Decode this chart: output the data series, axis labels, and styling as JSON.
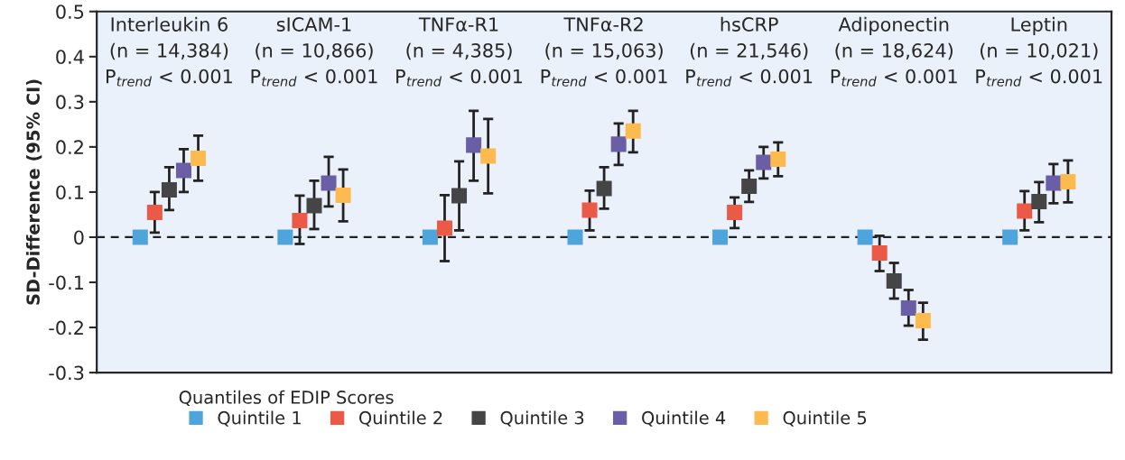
{
  "chart_data": {
    "type": "scatter",
    "categories": [
      "Interleukin 6\n(n = 14,384)\nP$_{trend}$ < 0.001",
      "sICAM-1\n(n = 10,866)\nP$_{trend}$ < 0.001",
      "TNFα-R1\n(n = 4,385)\nP$_{trend}$ < 0.001",
      "TNFα-R2\n(n = 15,063)\nP$_{trend}$ < 0.001",
      "hsCRP\n(n = 21,546)\nP$_{trend}$ < 0.001",
      "Adiponectin\n(n = 18,624)\nP$_{trend}$ < 0.001",
      "Leptin\n(n = 10,021)\nP$_{trend}$ < 0.001"
    ],
    "ylabel": "SD-Difference (95% CI)",
    "legend_title": "Quantiles of EDIP Scores",
    "series": [
      {
        "name": "Quintile 1",
        "color": "#4ea5dc",
        "values": [
          0,
          0,
          0,
          0,
          0,
          0,
          0
        ],
        "errors": [
          null,
          null,
          null,
          null,
          null,
          null,
          null
        ]
      },
      {
        "name": "Quintile 2",
        "color": "#eb5a46",
        "values": [
          0.055,
          0.037,
          0.02,
          0.06,
          0.055,
          -0.035,
          0.058
        ],
        "errors": [
          [
            0.01,
            0.1
          ],
          [
            -0.015,
            0.092
          ],
          [
            -0.053,
            0.093
          ],
          [
            0.015,
            0.103
          ],
          [
            0.02,
            0.088
          ],
          [
            -0.075,
            0.003
          ],
          [
            0.015,
            0.102
          ]
        ]
      },
      {
        "name": "Quintile 3",
        "color": "#454545",
        "values": [
          0.105,
          0.07,
          0.092,
          0.108,
          0.113,
          -0.097,
          0.079
        ],
        "errors": [
          [
            0.06,
            0.155
          ],
          [
            0.018,
            0.125
          ],
          [
            0.015,
            0.168
          ],
          [
            0.063,
            0.155
          ],
          [
            0.078,
            0.148
          ],
          [
            -0.136,
            -0.057
          ],
          [
            0.033,
            0.122
          ]
        ]
      },
      {
        "name": "Quintile 4",
        "color": "#6a5fa6",
        "values": [
          0.148,
          0.12,
          0.204,
          0.206,
          0.166,
          -0.157,
          0.12
        ],
        "errors": [
          [
            0.1,
            0.195
          ],
          [
            0.068,
            0.178
          ],
          [
            0.125,
            0.28
          ],
          [
            0.16,
            0.252
          ],
          [
            0.13,
            0.2
          ],
          [
            -0.196,
            -0.117
          ],
          [
            0.075,
            0.162
          ]
        ]
      },
      {
        "name": "Quintile 5",
        "color": "#fdbb4f",
        "values": [
          0.175,
          0.093,
          0.18,
          0.235,
          0.173,
          -0.185,
          0.123
        ],
        "errors": [
          [
            0.125,
            0.225
          ],
          [
            0.035,
            0.15
          ],
          [
            0.097,
            0.262
          ],
          [
            0.188,
            0.28
          ],
          [
            0.135,
            0.21
          ],
          [
            -0.227,
            -0.145
          ],
          [
            0.077,
            0.17
          ]
        ]
      }
    ],
    "ylim": [
      -0.3,
      0.5
    ],
    "yticks": [
      -0.3,
      -0.2,
      -0.1,
      0,
      0.1,
      0.2,
      0.3,
      0.4,
      0.5
    ],
    "ref_lines": [
      {
        "axis": "y",
        "value": 0,
        "color": "#222222",
        "line_style": "dashed"
      }
    ],
    "marker": "square",
    "legend": "bottom",
    "grid": false,
    "tick_labels": "y"
  }
}
